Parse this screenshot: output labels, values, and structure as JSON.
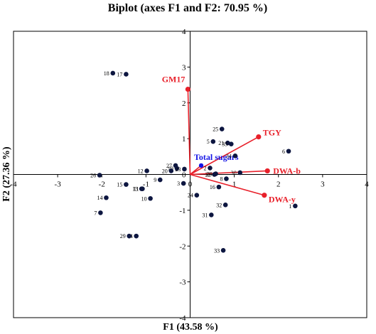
{
  "chart_data": {
    "type": "scatter",
    "title": "Biplot (axes F1 and F2: 70.95 %)",
    "xlabel": "F1 (43.58 %)",
    "ylabel": "F2 (27.36 %)",
    "xlim": [
      -4,
      4
    ],
    "ylim": [
      -4,
      4
    ],
    "xticks": [
      "-4",
      "-3",
      "-2",
      "-1",
      "0",
      "1",
      "2",
      "3",
      "4"
    ],
    "yticks": [
      "-4",
      "-3",
      "-2",
      "-1",
      "0",
      "1",
      "2",
      "3",
      "4"
    ],
    "grid": false,
    "observations": [
      {
        "label": "1",
        "x": 2.38,
        "y": -0.88
      },
      {
        "label": "2",
        "x": 0.45,
        "y": 0.18
      },
      {
        "label": "3",
        "x": -0.15,
        "y": -0.25
      },
      {
        "label": "4",
        "x": -1.22,
        "y": -1.72
      },
      {
        "label": "5",
        "x": 0.52,
        "y": 0.92
      },
      {
        "label": "6",
        "x": 2.23,
        "y": 0.65
      },
      {
        "label": "7",
        "x": -2.03,
        "y": -1.07
      },
      {
        "label": "8",
        "x": 0.82,
        "y": -0.12
      },
      {
        "label": "9",
        "x": -0.68,
        "y": -0.15
      },
      {
        "label": "10",
        "x": -0.9,
        "y": -0.67
      },
      {
        "label": "11",
        "x": -1.08,
        "y": -0.4
      },
      {
        "label": "12",
        "x": -0.98,
        "y": 0.1
      },
      {
        "label": "13",
        "x": -1.1,
        "y": -0.4
      },
      {
        "label": "14",
        "x": -1.9,
        "y": -0.65
      },
      {
        "label": "15",
        "x": -1.45,
        "y": -0.28
      },
      {
        "label": "16",
        "x": 0.65,
        "y": -0.35
      },
      {
        "label": "17",
        "x": -1.45,
        "y": 2.8
      },
      {
        "label": "18",
        "x": -1.75,
        "y": 2.83
      },
      {
        "label": "19",
        "x": -0.3,
        "y": 0.17
      },
      {
        "label": "20",
        "x": -0.43,
        "y": 0.1
      },
      {
        "label": "21",
        "x": 0.85,
        "y": 0.88
      },
      {
        "label": "22",
        "x": 0.55,
        "y": 0.0
      },
      {
        "label": "23",
        "x": -0.13,
        "y": 0.15
      },
      {
        "label": "24",
        "x": 0.15,
        "y": -0.58
      },
      {
        "label": "25",
        "x": 0.72,
        "y": 1.27
      },
      {
        "label": "26",
        "x": -2.05,
        "y": -0.02
      },
      {
        "label": "27",
        "x": -0.33,
        "y": 0.25
      },
      {
        "label": "28",
        "x": 0.58,
        "y": 0.02
      },
      {
        "label": "29",
        "x": -1.38,
        "y": -1.72
      },
      {
        "label": "30",
        "x": 1.13,
        "y": 0.05
      },
      {
        "label": "31",
        "x": 0.48,
        "y": -1.13
      },
      {
        "label": "32",
        "x": 0.8,
        "y": -0.85
      },
      {
        "label": "33",
        "x": 0.75,
        "y": -2.12
      },
      {
        "label": "34",
        "x": 1.02,
        "y": 0.52
      },
      {
        "label": "35",
        "x": 0.93,
        "y": 0.85
      }
    ],
    "variables": [
      {
        "label": "GM17",
        "x": -0.05,
        "y": 2.38,
        "color": "#e8202a"
      },
      {
        "label": "TGY",
        "x": 1.55,
        "y": 1.05,
        "color": "#e8202a"
      },
      {
        "label": "DWA-b",
        "x": 1.75,
        "y": 0.1,
        "color": "#e8202a"
      },
      {
        "label": "DWA-y",
        "x": 1.68,
        "y": -0.58,
        "color": "#e8202a"
      },
      {
        "label": "Total sugars",
        "x": 0.25,
        "y": 0.25,
        "color": "#1414e6"
      }
    ],
    "colors": {
      "observation": "#0d1640",
      "vector": "#e8202a",
      "total_sugars_label": "#1414e6"
    }
  }
}
